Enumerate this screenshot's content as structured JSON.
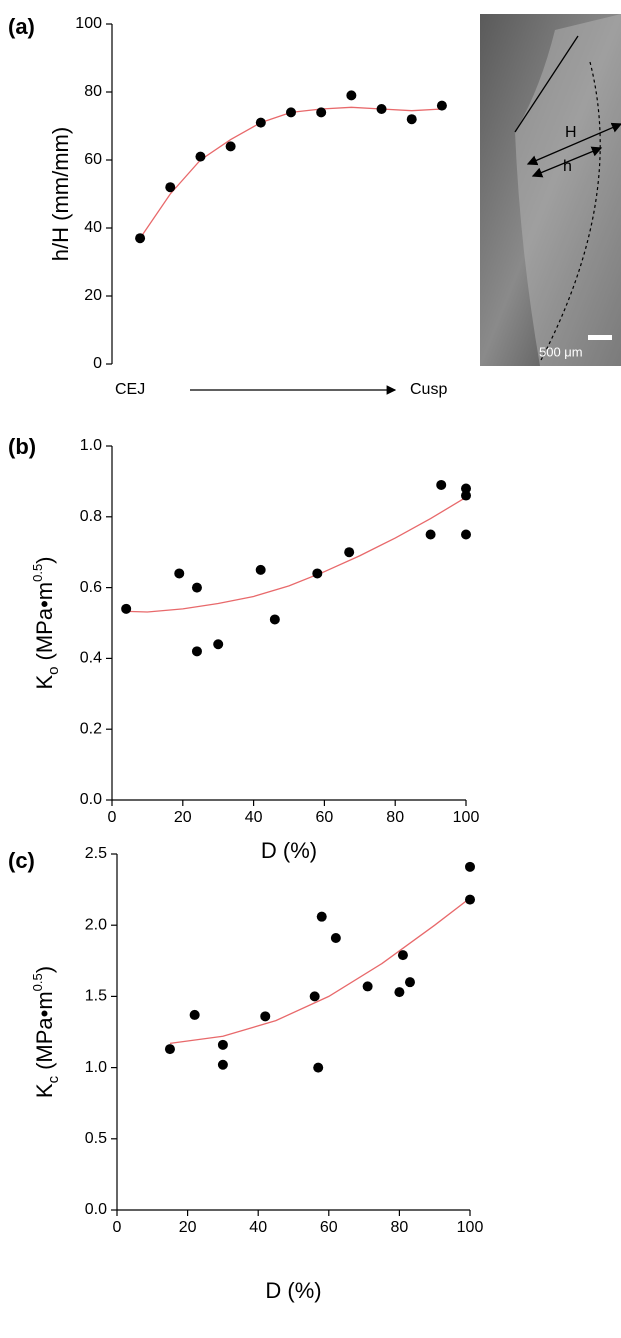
{
  "chart_data": [
    {
      "type": "scatter",
      "panel": "(a)",
      "ylabel": "h/H (mm/mm)",
      "x_start_label": "CEJ",
      "x_end_label": "Cusp",
      "categories": [
        null,
        null,
        null,
        null,
        null,
        null,
        null,
        null,
        null,
        null,
        null
      ],
      "values": [
        37,
        52,
        61,
        64,
        71,
        74,
        74,
        79,
        75,
        72,
        76
      ],
      "color": "#000000",
      "fit": {
        "color": "#e8696b",
        "values": [
          37,
          50,
          60,
          66,
          71,
          74,
          75,
          75.5,
          75,
          74.5,
          75
        ]
      },
      "ylim": [
        0,
        100
      ],
      "yticks": [
        0,
        20,
        40,
        60,
        80,
        100
      ],
      "image": {
        "H": "H",
        "h": "h",
        "scale": "500 μm"
      }
    },
    {
      "type": "scatter",
      "panel": "(b)",
      "ylabel": {
        "main": "K",
        "sub": "o",
        "unit": "(MPa•m",
        "sup": "0.5",
        "close": ")"
      },
      "xlabel": "D (%)",
      "x": [
        4,
        19,
        24,
        24,
        30,
        42,
        46,
        58,
        67,
        90,
        93,
        100,
        100,
        100
      ],
      "values": [
        0.54,
        0.64,
        0.6,
        0.42,
        0.44,
        0.65,
        0.51,
        0.64,
        0.7,
        0.75,
        0.89,
        0.88,
        0.86,
        0.75
      ],
      "color": "#000000",
      "fit": {
        "color": "#e8696b",
        "x": [
          4,
          10,
          20,
          30,
          40,
          50,
          60,
          70,
          80,
          90,
          100
        ],
        "values": [
          0.533,
          0.531,
          0.54,
          0.555,
          0.575,
          0.605,
          0.645,
          0.69,
          0.74,
          0.795,
          0.855
        ]
      },
      "xlim": [
        0,
        100
      ],
      "xticks": [
        0,
        20,
        40,
        60,
        80,
        100
      ],
      "ylim": [
        0,
        1
      ],
      "yticks": [
        {
          "value": 0,
          "label": "0.0"
        },
        0.2,
        0.4,
        0.6,
        0.8,
        {
          "value": 1,
          "label": "1.0"
        }
      ]
    },
    {
      "type": "scatter",
      "panel": "(c)",
      "ylabel": {
        "main": "K",
        "sub": "c",
        "unit": "(MPa•m",
        "sup": "0.5",
        "close": ")"
      },
      "xlabel": "D (%)",
      "x": [
        15,
        22,
        30,
        30,
        42,
        56,
        57,
        58,
        62,
        71,
        80,
        81,
        83,
        100,
        100
      ],
      "values": [
        1.13,
        1.37,
        1.16,
        1.02,
        1.36,
        1.5,
        1.0,
        2.06,
        1.91,
        1.57,
        1.53,
        1.79,
        1.6,
        2.41,
        2.18
      ],
      "color": "#000000",
      "fit": {
        "color": "#e8696b",
        "x": [
          15,
          30,
          45,
          60,
          75,
          90,
          100
        ],
        "values": [
          1.17,
          1.22,
          1.33,
          1.5,
          1.73,
          2.0,
          2.19
        ]
      },
      "xlim": [
        0,
        100
      ],
      "xticks": [
        0,
        20,
        40,
        60,
        80,
        100
      ],
      "ylim": [
        0,
        2.5
      ],
      "yticks": [
        {
          "value": 0,
          "label": "0.0"
        },
        0.5,
        {
          "value": 1,
          "label": "1.0"
        },
        1.5,
        {
          "value": 2,
          "label": "2.0"
        },
        2.5
      ]
    }
  ]
}
